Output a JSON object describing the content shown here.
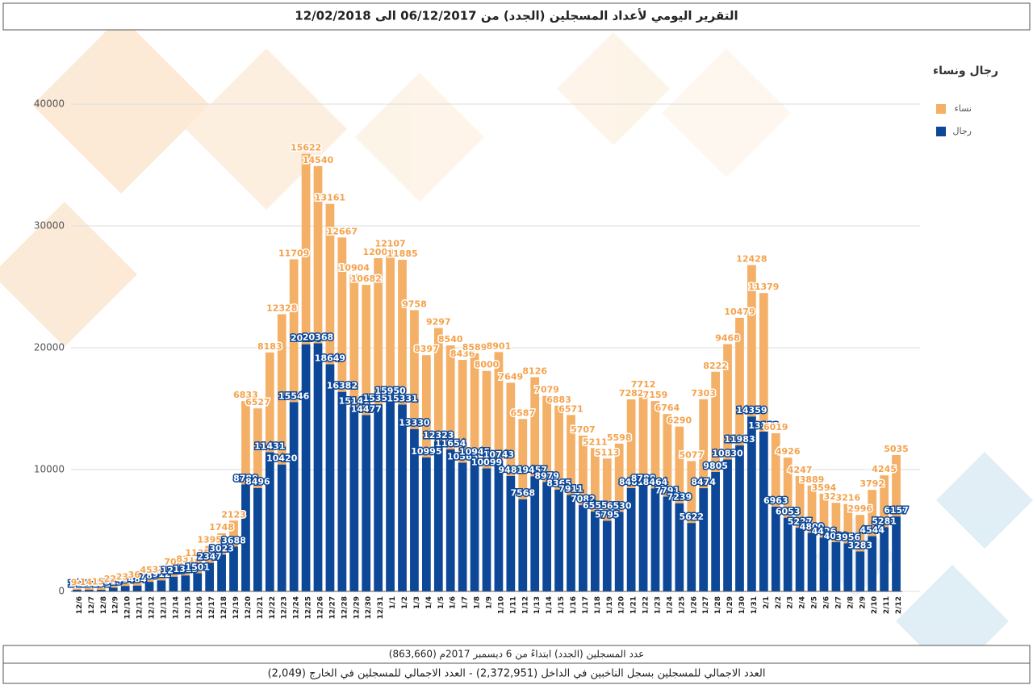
{
  "chart_data": {
    "type": "stacked_bar",
    "title": "التقرير اليومي لأعداد المسجلين (الجدد) من 06/12/2017 الى 12/02/2018",
    "legend_title": "رجال ونساء",
    "legend_position": "top-right",
    "footer": [
      "عدد المسجلين (الجدد) ابتداءً من 6 ديسمبر 2017م (863,660)",
      "العدد الاجمالي للمسجلين بسجل الناخبين في الداخل (2,372,951) - العدد الاجمالي للمسجلين في الخارج (2,049)"
    ],
    "categories": [
      "12/6",
      "12/7",
      "12/8",
      "12/9",
      "12/10",
      "12/11",
      "12/12",
      "12/13",
      "12/14",
      "12/15",
      "12/16",
      "12/17",
      "12/18",
      "12/19",
      "12/20",
      "12/21",
      "12/22",
      "12/23",
      "12/24",
      "12/25",
      "12/26",
      "12/27",
      "12/28",
      "12/29",
      "12/30",
      "12/31",
      "1/1",
      "1/2",
      "1/3",
      "1/4",
      "1/5",
      "1/6",
      "1/7",
      "1/8",
      "1/9",
      "1/10",
      "1/11",
      "1/12",
      "1/13",
      "1/14",
      "1/15",
      "1/16",
      "1/17",
      "1/18",
      "1/19",
      "1/20",
      "1/21",
      "1/22",
      "1/23",
      "1/24",
      "1/25",
      "1/26",
      "1/27",
      "1/28",
      "1/29",
      "1/30",
      "1/31",
      "2/1",
      "2/2",
      "2/3",
      "2/4",
      "2/5",
      "2/6",
      "2/7",
      "2/8",
      "2/9",
      "2/10",
      "2/11",
      "2/12"
    ],
    "series": [
      {
        "name": "رجال",
        "color": "#0d4797",
        "values": [
          143,
          131,
          131,
          313,
          454,
          484,
          789,
          912,
          1213,
          1313,
          1501,
          2347,
          3023,
          3688,
          8788,
          8496,
          11431,
          10420,
          15546,
          20290,
          20368,
          18649,
          16382,
          15141,
          14477,
          15351,
          15950,
          15331,
          13330,
          10995,
          12323,
          11654,
          10565,
          10945,
          10099,
          10743,
          9481,
          7568,
          9457,
          8979,
          8365,
          7911,
          7082,
          6555,
          5795,
          6530,
          8481,
          8788,
          8464,
          7791,
          7239,
          5622,
          8474,
          9805,
          10830,
          11983,
          14359,
          13113,
          6963,
          6053,
          5227,
          4800,
          4426,
          4039,
          3956,
          3283,
          4544,
          5281,
          6157
        ]
      },
      {
        "name": "نساء",
        "color": "#f4b066",
        "values": [
          94,
          141,
          152,
          222,
          236,
          364,
          456,
          372,
          708,
          831,
          1135,
          1395,
          1748,
          2123,
          6833,
          6527,
          8183,
          12328,
          11709,
          15622,
          14540,
          13161,
          12667,
          10904,
          10682,
          12000,
          12107,
          11885,
          9758,
          8397,
          9297,
          8540,
          8436,
          8589,
          8000,
          8901,
          7649,
          6587,
          8126,
          7079,
          6883,
          6571,
          5707,
          5211,
          5113,
          5598,
          7282,
          7712,
          7159,
          6764,
          6290,
          5077,
          7303,
          8222,
          9468,
          10479,
          12428,
          11379,
          6019,
          4926,
          4247,
          3889,
          3594,
          3232,
          3216,
          2996,
          3792,
          4245,
          5035
        ]
      }
    ],
    "ylim": [
      0,
      40000
    ],
    "yticks": [
      0,
      10000,
      20000,
      30000,
      40000
    ],
    "grid": true
  }
}
